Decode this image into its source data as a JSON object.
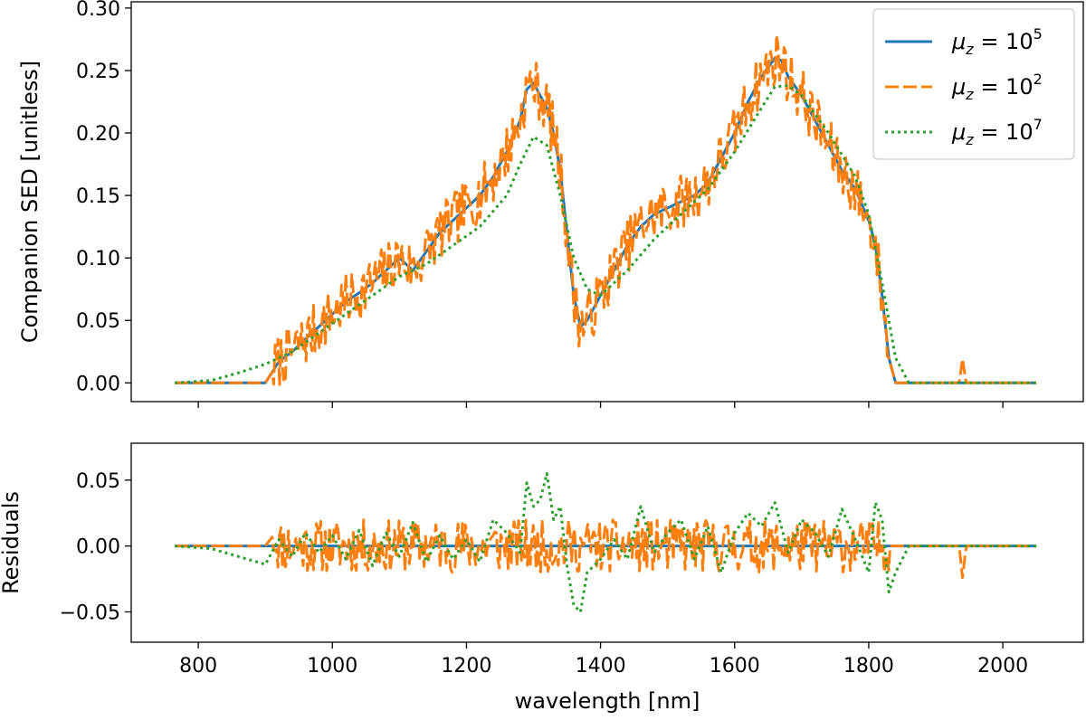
{
  "chart_data": [
    {
      "type": "line",
      "ylabel": "Companion SED [unitless]",
      "xlim": [
        700,
        2120
      ],
      "ylim": [
        -0.015,
        0.305
      ],
      "xticks": [
        800,
        1000,
        1200,
        1400,
        1600,
        1800,
        2000
      ],
      "yticks": [
        0.0,
        0.05,
        0.1,
        0.15,
        0.2,
        0.25,
        0.3
      ],
      "ytick_labels": [
        "0.00",
        "0.05",
        "0.10",
        "0.15",
        "0.20",
        "0.25",
        "0.30"
      ],
      "legend": {
        "position": "top-right",
        "entries": [
          {
            "symbol": "μ",
            "sub": "z",
            "eq": " = 10",
            "exp": "5",
            "color": "#1f77b4",
            "style": "solid"
          },
          {
            "symbol": "μ",
            "sub": "z",
            "eq": " = 10",
            "exp": "2",
            "color": "#ff7f0e",
            "style": "dashed"
          },
          {
            "symbol": "μ",
            "sub": "z",
            "eq": " = 10",
            "exp": "7",
            "color": "#2ca02c",
            "style": "dotted"
          }
        ]
      },
      "series": [
        {
          "name": "μz = 10^5",
          "color": "#1f77b4",
          "style": "solid",
          "x": [
            765,
            900,
            912,
            920,
            940,
            960,
            980,
            1000,
            1020,
            1040,
            1060,
            1080,
            1100,
            1120,
            1140,
            1160,
            1180,
            1200,
            1220,
            1240,
            1260,
            1280,
            1290,
            1300,
            1310,
            1320,
            1330,
            1340,
            1350,
            1360,
            1370,
            1380,
            1390,
            1400,
            1420,
            1440,
            1460,
            1480,
            1500,
            1520,
            1540,
            1560,
            1580,
            1600,
            1620,
            1640,
            1660,
            1670,
            1680,
            1700,
            1720,
            1740,
            1760,
            1780,
            1800,
            1810,
            1820,
            1830,
            1840,
            2050
          ],
          "y": [
            0,
            0,
            0.01,
            0.017,
            0.025,
            0.035,
            0.045,
            0.055,
            0.065,
            0.072,
            0.08,
            0.09,
            0.1,
            0.09,
            0.105,
            0.12,
            0.13,
            0.14,
            0.15,
            0.165,
            0.185,
            0.21,
            0.235,
            0.24,
            0.23,
            0.22,
            0.2,
            0.17,
            0.12,
            0.07,
            0.045,
            0.05,
            0.06,
            0.07,
            0.09,
            0.11,
            0.125,
            0.135,
            0.14,
            0.145,
            0.15,
            0.16,
            0.18,
            0.2,
            0.225,
            0.245,
            0.26,
            0.258,
            0.245,
            0.23,
            0.21,
            0.19,
            0.17,
            0.155,
            0.13,
            0.11,
            0.07,
            0.02,
            0,
            0
          ]
        },
        {
          "name": "μz = 10^2",
          "color": "#ff7f0e",
          "style": "dashed",
          "noise": 0.022,
          "seed": 7,
          "x": [
            765,
            900,
            912,
            920,
            940,
            960,
            980,
            1000,
            1020,
            1040,
            1060,
            1080,
            1100,
            1120,
            1140,
            1160,
            1180,
            1200,
            1220,
            1240,
            1260,
            1280,
            1290,
            1300,
            1310,
            1320,
            1330,
            1340,
            1350,
            1360,
            1370,
            1380,
            1390,
            1400,
            1420,
            1440,
            1460,
            1480,
            1500,
            1520,
            1540,
            1560,
            1580,
            1600,
            1620,
            1640,
            1660,
            1670,
            1680,
            1700,
            1720,
            1740,
            1760,
            1780,
            1800,
            1810,
            1820,
            1830,
            1840,
            1935,
            1940,
            1945,
            2050
          ],
          "y": [
            0,
            0,
            0.01,
            0.017,
            0.025,
            0.035,
            0.045,
            0.055,
            0.065,
            0.072,
            0.08,
            0.09,
            0.1,
            0.09,
            0.105,
            0.12,
            0.13,
            0.14,
            0.15,
            0.165,
            0.185,
            0.21,
            0.235,
            0.24,
            0.23,
            0.22,
            0.2,
            0.17,
            0.12,
            0.07,
            0.045,
            0.05,
            0.06,
            0.07,
            0.09,
            0.11,
            0.125,
            0.135,
            0.14,
            0.145,
            0.15,
            0.16,
            0.18,
            0.2,
            0.225,
            0.245,
            0.26,
            0.258,
            0.245,
            0.23,
            0.21,
            0.19,
            0.17,
            0.155,
            0.13,
            0.11,
            0.07,
            0.02,
            0,
            0,
            0.02,
            0,
            0
          ],
          "noise_range": [
            912,
            1830
          ]
        },
        {
          "name": "μz = 10^7",
          "color": "#2ca02c",
          "style": "dotted",
          "x": [
            765,
            820,
            860,
            900,
            940,
            980,
            1020,
            1060,
            1100,
            1140,
            1180,
            1220,
            1260,
            1280,
            1300,
            1320,
            1340,
            1360,
            1380,
            1400,
            1440,
            1480,
            1520,
            1560,
            1600,
            1640,
            1660,
            1680,
            1700,
            1740,
            1780,
            1800,
            1820,
            1840,
            1860,
            2050
          ],
          "y": [
            0,
            0.002,
            0.008,
            0.015,
            0.025,
            0.04,
            0.055,
            0.07,
            0.085,
            0.095,
            0.11,
            0.125,
            0.15,
            0.175,
            0.197,
            0.19,
            0.15,
            0.1,
            0.075,
            0.07,
            0.09,
            0.115,
            0.135,
            0.155,
            0.185,
            0.22,
            0.237,
            0.238,
            0.23,
            0.2,
            0.165,
            0.135,
            0.08,
            0.02,
            0,
            0
          ]
        }
      ]
    },
    {
      "type": "line",
      "xlabel": "wavelength [nm]",
      "ylabel": "Residuals",
      "xlim": [
        700,
        2120
      ],
      "ylim": [
        -0.073,
        0.078
      ],
      "xticks": [
        800,
        1000,
        1200,
        1400,
        1600,
        1800,
        2000
      ],
      "xtick_labels": [
        "800",
        "1000",
        "1200",
        "1400",
        "1600",
        "1800",
        "2000"
      ],
      "yticks": [
        -0.05,
        0.0,
        0.05
      ],
      "ytick_labels": [
        "−0.05",
        "0.00",
        "0.05"
      ],
      "series": [
        {
          "name": "μz = 10^5",
          "color": "#1f77b4",
          "style": "solid",
          "x": [
            765,
            2050
          ],
          "y": [
            0,
            0
          ]
        },
        {
          "name": "μz = 10^2",
          "color": "#ff7f0e",
          "style": "dashed",
          "noise": 0.02,
          "seed": 11,
          "x": [
            765,
            900,
            912,
            920,
            1830,
            1840,
            1935,
            1940,
            1945,
            2050
          ],
          "y": [
            0,
            0,
            0.008,
            0,
            0,
            0,
            0,
            -0.025,
            0,
            0
          ],
          "noise_range": [
            912,
            1830
          ]
        },
        {
          "name": "μz = 10^7",
          "color": "#2ca02c",
          "style": "dotted",
          "x": [
            765,
            820,
            860,
            900,
            920,
            940,
            960,
            980,
            1000,
            1020,
            1040,
            1060,
            1080,
            1100,
            1120,
            1140,
            1160,
            1180,
            1200,
            1220,
            1240,
            1260,
            1280,
            1290,
            1300,
            1310,
            1320,
            1330,
            1340,
            1350,
            1360,
            1370,
            1380,
            1400,
            1420,
            1440,
            1460,
            1480,
            1500,
            1520,
            1540,
            1560,
            1580,
            1600,
            1620,
            1640,
            1660,
            1680,
            1700,
            1720,
            1740,
            1760,
            1780,
            1800,
            1810,
            1820,
            1830,
            1840,
            1860,
            2050
          ],
          "y": [
            0,
            -0.002,
            -0.008,
            -0.014,
            0.005,
            -0.008,
            0.01,
            -0.005,
            0.008,
            -0.01,
            0.012,
            -0.015,
            0.01,
            -0.008,
            0.018,
            -0.012,
            0.008,
            -0.01,
            0.005,
            -0.012,
            0.02,
            0.01,
            -0.005,
            0.048,
            0.03,
            0.035,
            0.055,
            0.02,
            0.03,
            -0.015,
            -0.045,
            -0.05,
            -0.02,
            -0.01,
            0.005,
            -0.01,
            0.03,
            -0.005,
            0.01,
            0.02,
            -0.01,
            0.015,
            -0.02,
            0.01,
            0.025,
            0.015,
            0.033,
            -0.005,
            0.02,
            0.01,
            -0.008,
            0.028,
            0.005,
            -0.02,
            0.033,
            0.02,
            -0.035,
            -0.02,
            0,
            0
          ]
        }
      ]
    }
  ]
}
